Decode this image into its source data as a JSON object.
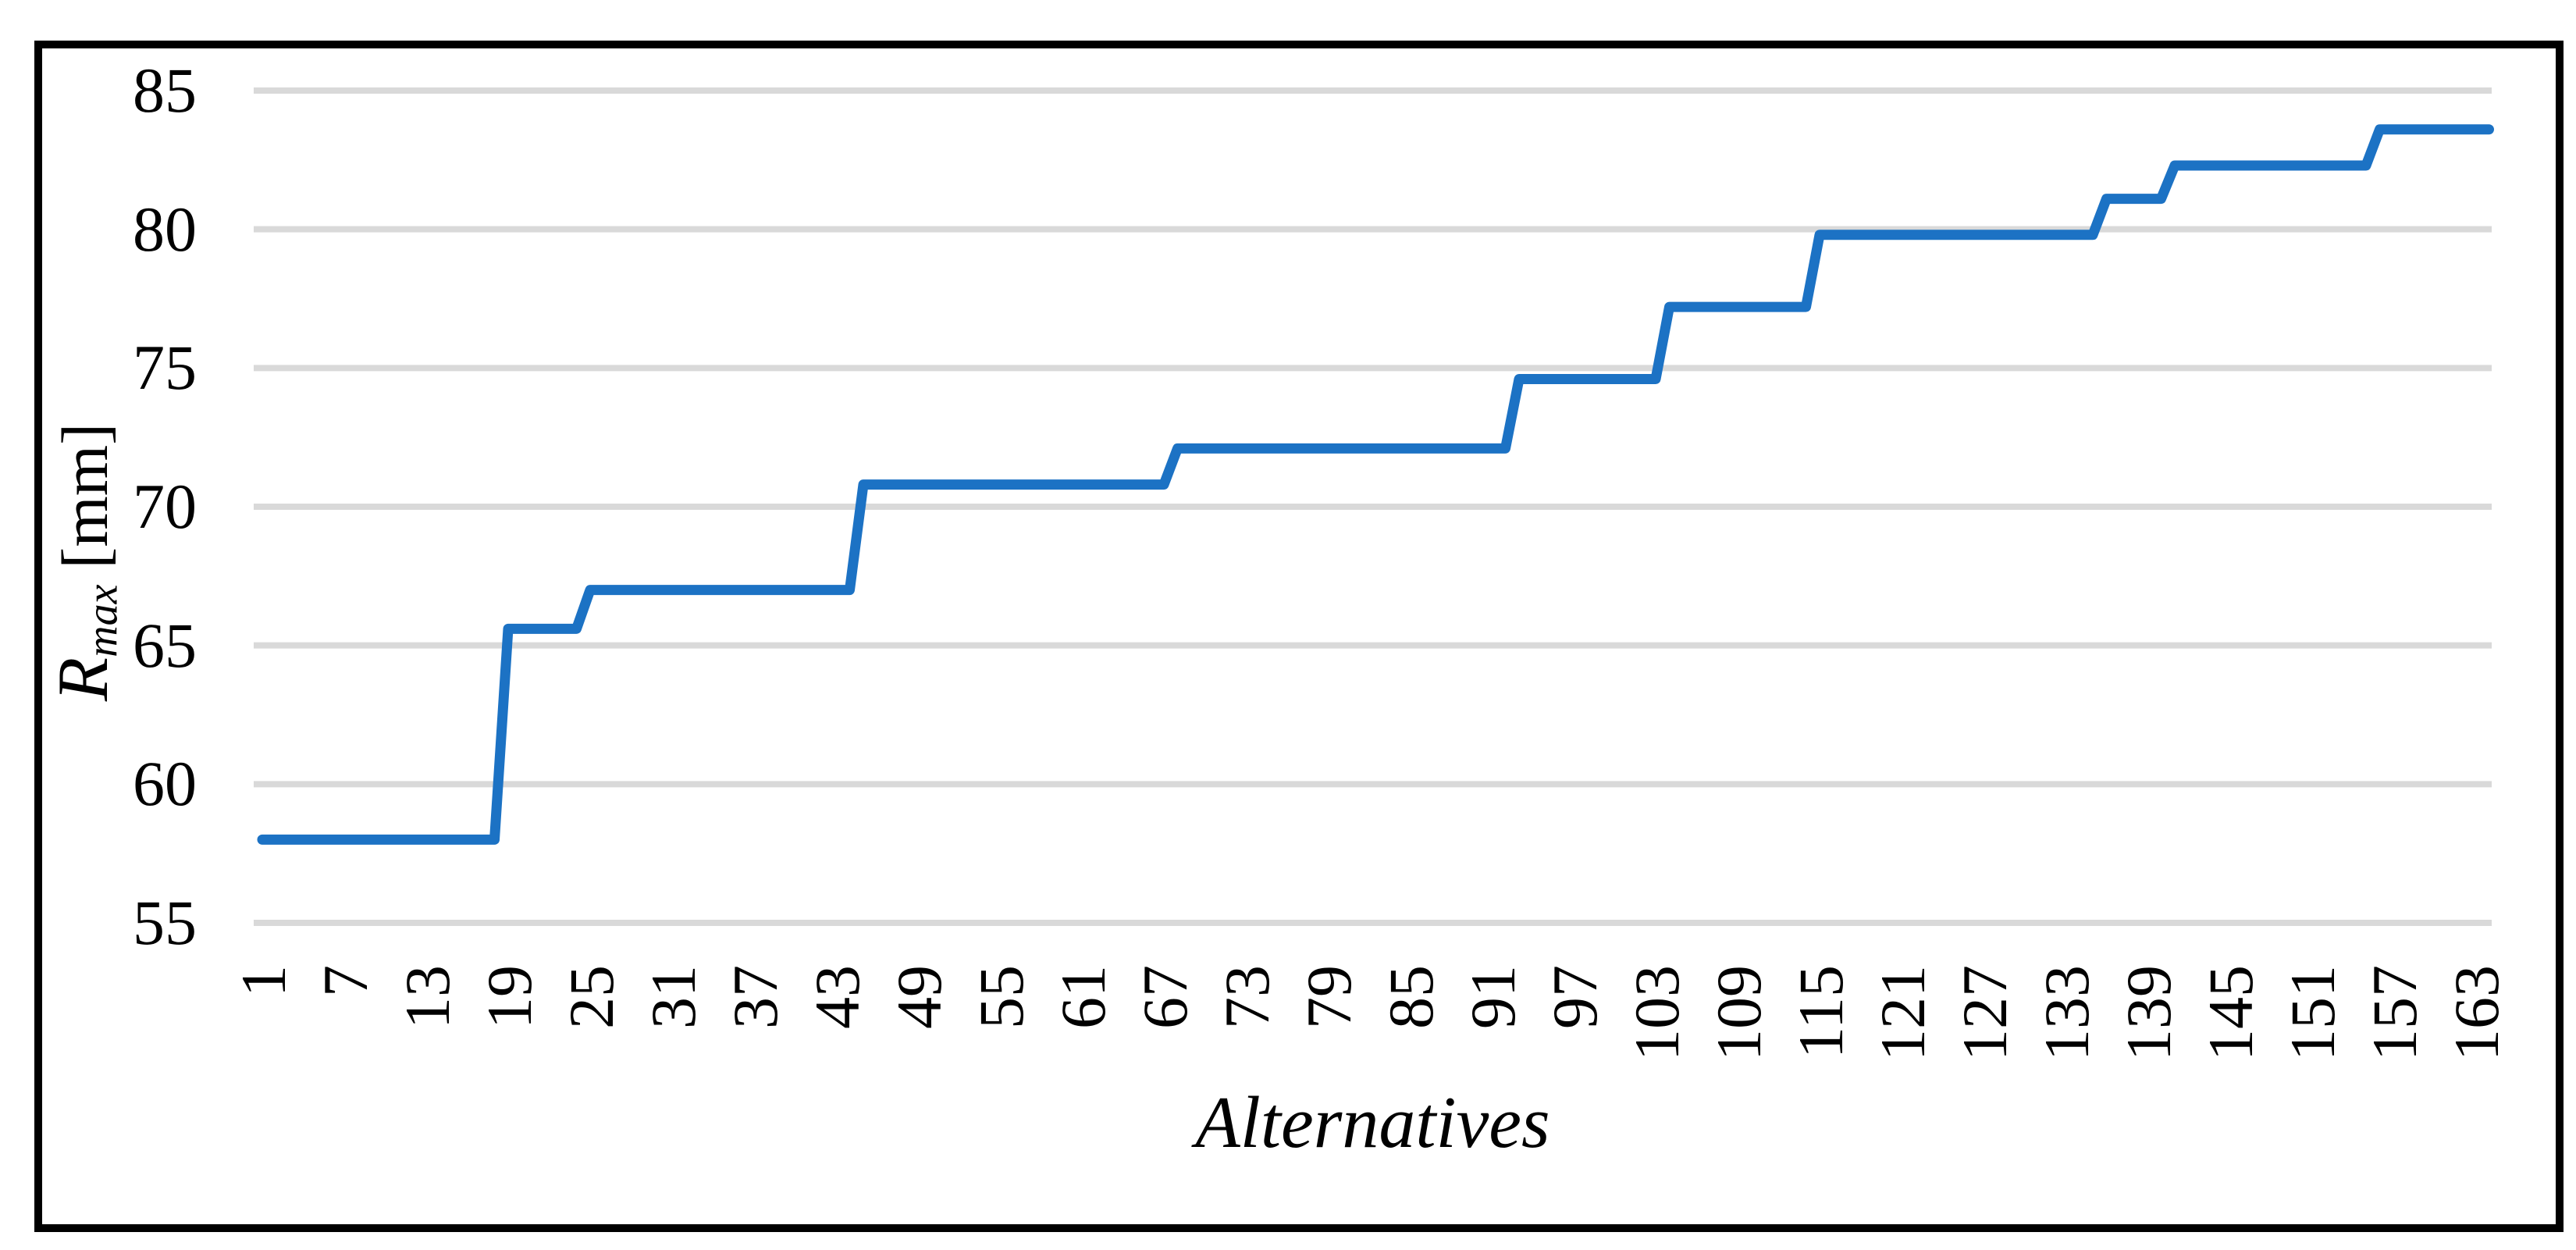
{
  "figure": {
    "x_axis_title": "Alternatives",
    "y_axis_title": {
      "symbol": "R",
      "subscript": "max",
      "unit": "[mm]"
    },
    "line_color": "#1C72C4",
    "gridline_color": "#D9D9D9",
    "border_color": "#000000",
    "text_color": "#000000"
  },
  "chart_data": {
    "type": "line",
    "title": "",
    "xlabel": "Alternatives",
    "ylabel": "Rmax [mm]",
    "legend": "none",
    "grid": "horizontal",
    "ylim": [
      55,
      85
    ],
    "y_tick_step": 5,
    "y_tick_labels": [
      "55",
      "60",
      "65",
      "70",
      "75",
      "80",
      "85"
    ],
    "x_tick_labels": [
      "1",
      "7",
      "13",
      "19",
      "25",
      "31",
      "37",
      "43",
      "49",
      "55",
      "61",
      "67",
      "73",
      "79",
      "85",
      "91",
      "97",
      "103",
      "109",
      "115",
      "121",
      "127",
      "133",
      "139",
      "145",
      "151",
      "157",
      "163"
    ],
    "x_label_interval": 6,
    "n_alternatives": 164,
    "series": [
      {
        "name": "Rmax",
        "step_segments": [
          {
            "from": 1,
            "to": 18,
            "value": 58.0
          },
          {
            "from": 19,
            "to": 24,
            "value": 65.6
          },
          {
            "from": 25,
            "to": 44,
            "value": 67.0
          },
          {
            "from": 45,
            "to": 67,
            "value": 70.8
          },
          {
            "from": 68,
            "to": 92,
            "value": 72.1
          },
          {
            "from": 93,
            "to": 103,
            "value": 74.6
          },
          {
            "from": 104,
            "to": 114,
            "value": 77.2
          },
          {
            "from": 115,
            "to": 135,
            "value": 79.8
          },
          {
            "from": 136,
            "to": 140,
            "value": 81.1
          },
          {
            "from": 141,
            "to": 155,
            "value": 82.3
          },
          {
            "from": 156,
            "to": 164,
            "value": 83.6
          }
        ]
      }
    ]
  }
}
